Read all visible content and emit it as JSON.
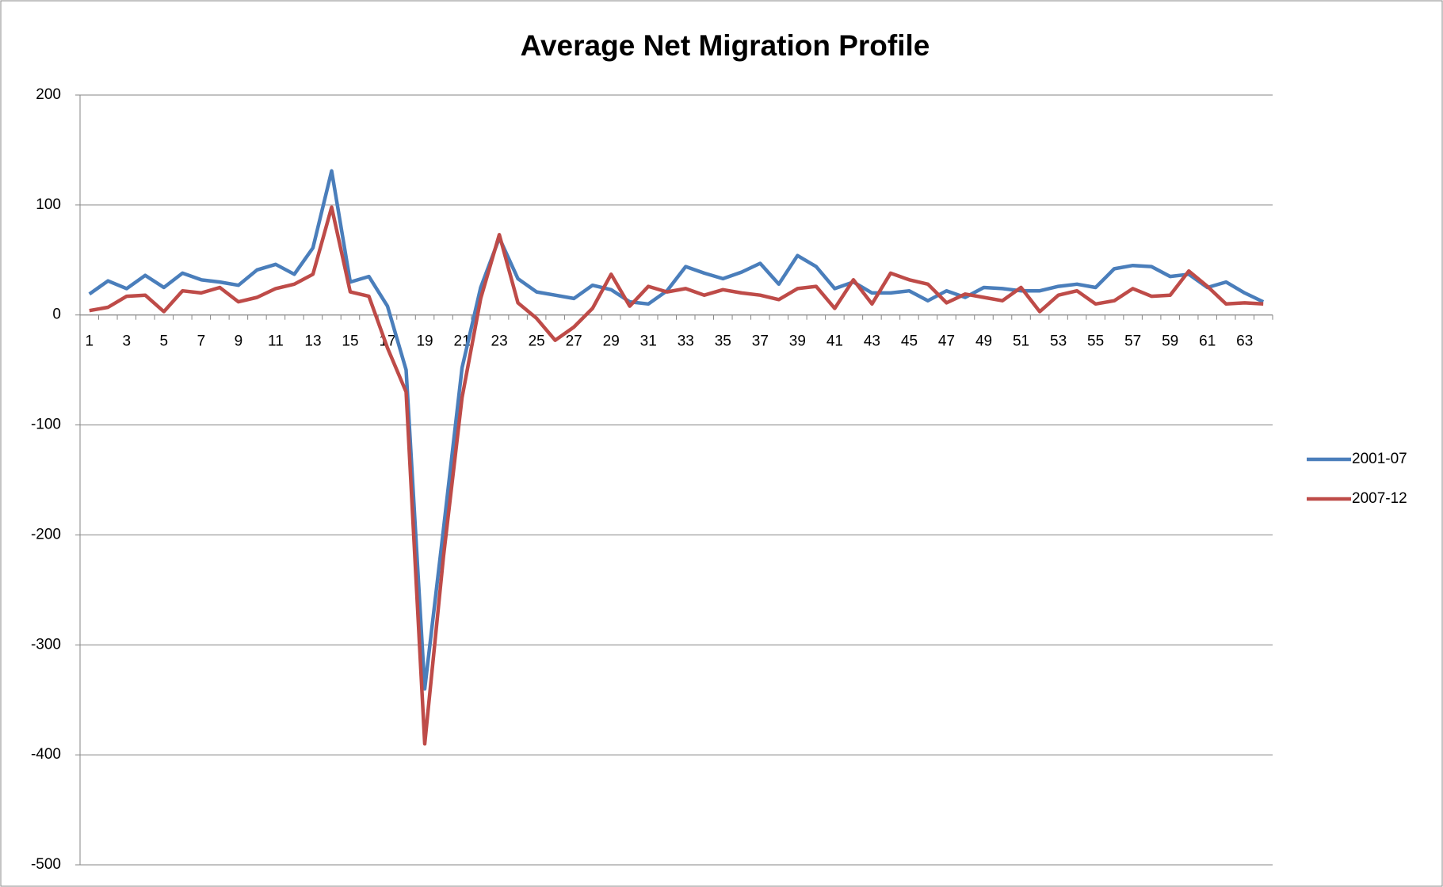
{
  "chart_data": {
    "type": "line",
    "title": "Average Net Migration Profile",
    "categories": [
      1,
      null,
      3,
      null,
      5,
      null,
      7,
      null,
      9,
      null,
      11,
      null,
      13,
      null,
      15,
      null,
      17,
      null,
      19,
      null,
      21,
      null,
      23,
      null,
      25,
      null,
      27,
      null,
      29,
      null,
      31,
      null,
      33,
      null,
      35,
      null,
      37,
      null,
      39,
      null,
      41,
      null,
      43,
      null,
      45,
      null,
      47,
      null,
      49,
      null,
      51,
      null,
      53,
      null,
      55,
      null,
      57,
      null,
      59,
      null,
      61,
      null,
      63,
      null
    ],
    "series": [
      {
        "name": "2001-07",
        "color": "#4a7ebb",
        "values": [
          19,
          31,
          24,
          36,
          25,
          38,
          32,
          30,
          27,
          41,
          46,
          37,
          61,
          131,
          30,
          35,
          8,
          -50,
          -340,
          -195,
          -48,
          25,
          70,
          33,
          21,
          18,
          15,
          27,
          23,
          12,
          10,
          22,
          44,
          38,
          33,
          39,
          47,
          28,
          54,
          44,
          24,
          30,
          20,
          20,
          22,
          13,
          22,
          16,
          25,
          24,
          22,
          22,
          26,
          28,
          25,
          42,
          45,
          44,
          35,
          37,
          25,
          30,
          20,
          12
        ]
      },
      {
        "name": "2007-12",
        "color": "#be4b48",
        "values": [
          4,
          7,
          17,
          18,
          3,
          22,
          20,
          25,
          12,
          16,
          24,
          28,
          37,
          98,
          21,
          17,
          -30,
          -70,
          -390,
          -220,
          -75,
          15,
          73,
          11,
          -3,
          -23,
          -11,
          6,
          37,
          8,
          26,
          21,
          24,
          18,
          23,
          20,
          18,
          14,
          24,
          26,
          6,
          32,
          10,
          38,
          32,
          28,
          11,
          19,
          16,
          13,
          25,
          3,
          18,
          22,
          10,
          13,
          24,
          17,
          18,
          40,
          26,
          10,
          11,
          10
        ]
      }
    ],
    "ylim": [
      -500,
      200
    ],
    "yticks": [
      -500,
      -400,
      -300,
      -200,
      -100,
      0,
      100,
      200
    ],
    "grid": true,
    "legend": "right"
  }
}
